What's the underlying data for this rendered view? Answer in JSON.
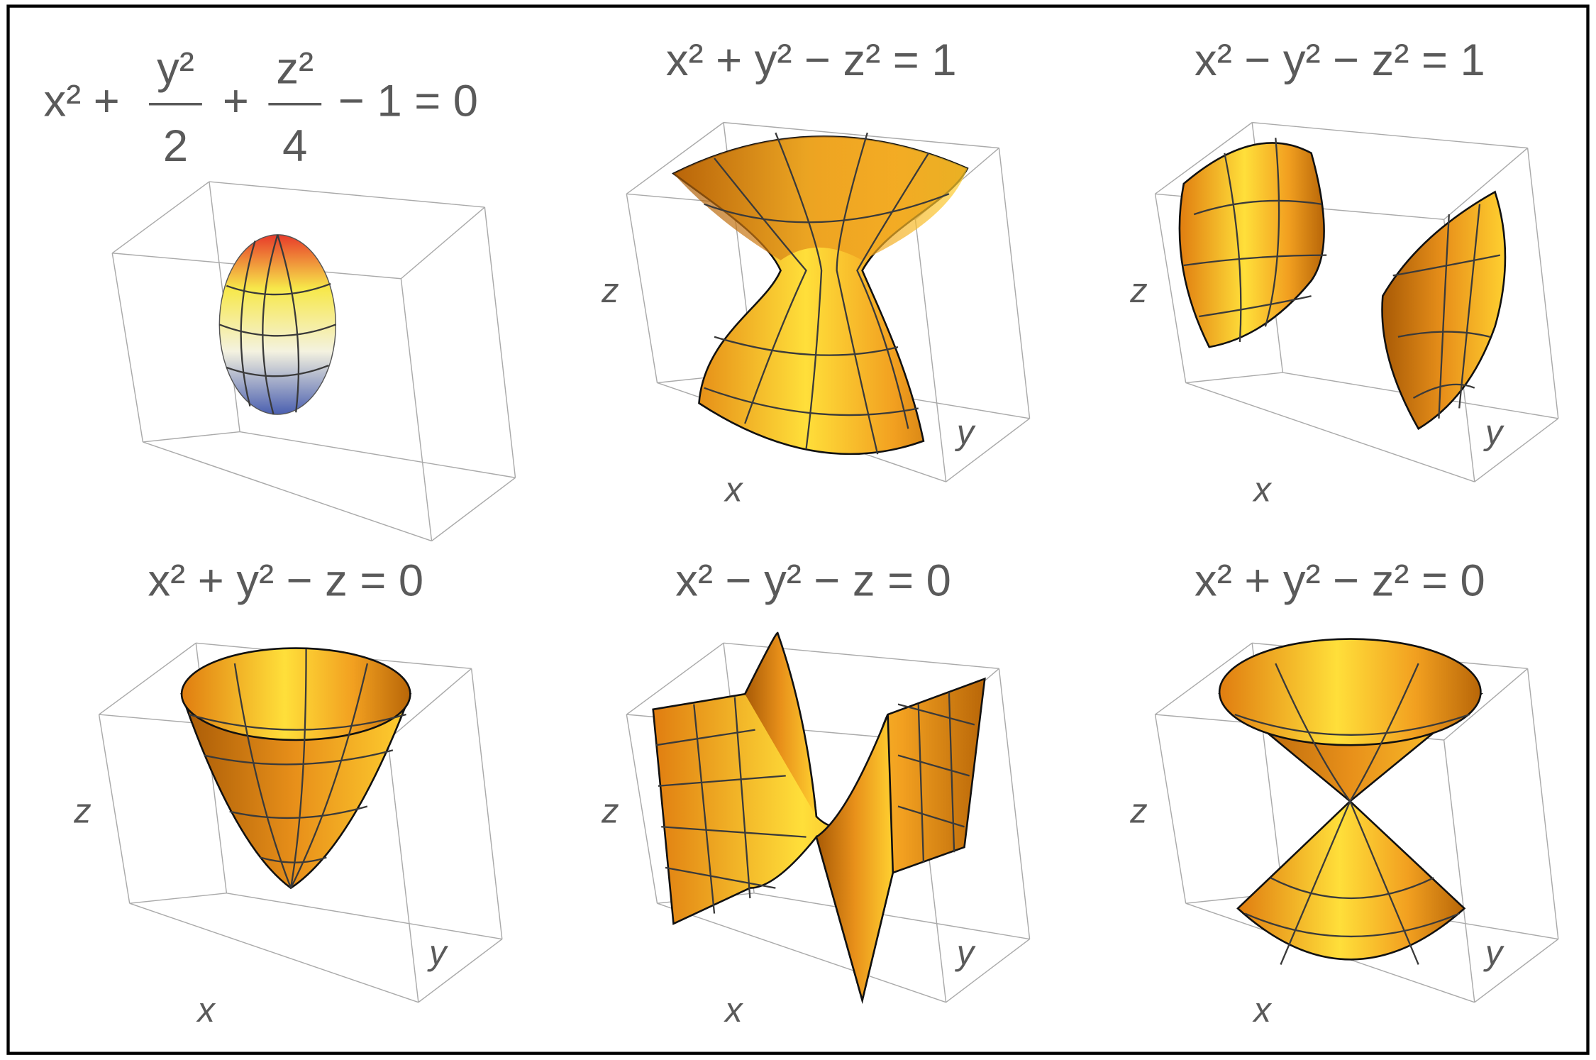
{
  "panels": [
    {
      "title": {
        "lead": "x² +",
        "frac1": {
          "num": "y²",
          "den": "2"
        },
        "mid": "+",
        "frac2": {
          "num": "z²",
          "den": "4"
        },
        "tail": "− 1 = 0"
      }
    },
    {
      "title": "x² + y² − z² = 1",
      "axes": {
        "x": "x",
        "y": "y",
        "z": "z"
      }
    },
    {
      "title": "x² − y² − z² = 1",
      "axes": {
        "x": "x",
        "y": "y",
        "z": "z"
      }
    },
    {
      "title": "x² + y² − z = 0",
      "axes": {
        "x": "x",
        "y": "y",
        "z": "z"
      }
    },
    {
      "title": "x² − y² − z = 0",
      "axes": {
        "x": "x",
        "y": "y",
        "z": "z"
      }
    },
    {
      "title": "x² + y² − z² = 0",
      "axes": {
        "x": "x",
        "y": "y",
        "z": "z"
      }
    }
  ]
}
